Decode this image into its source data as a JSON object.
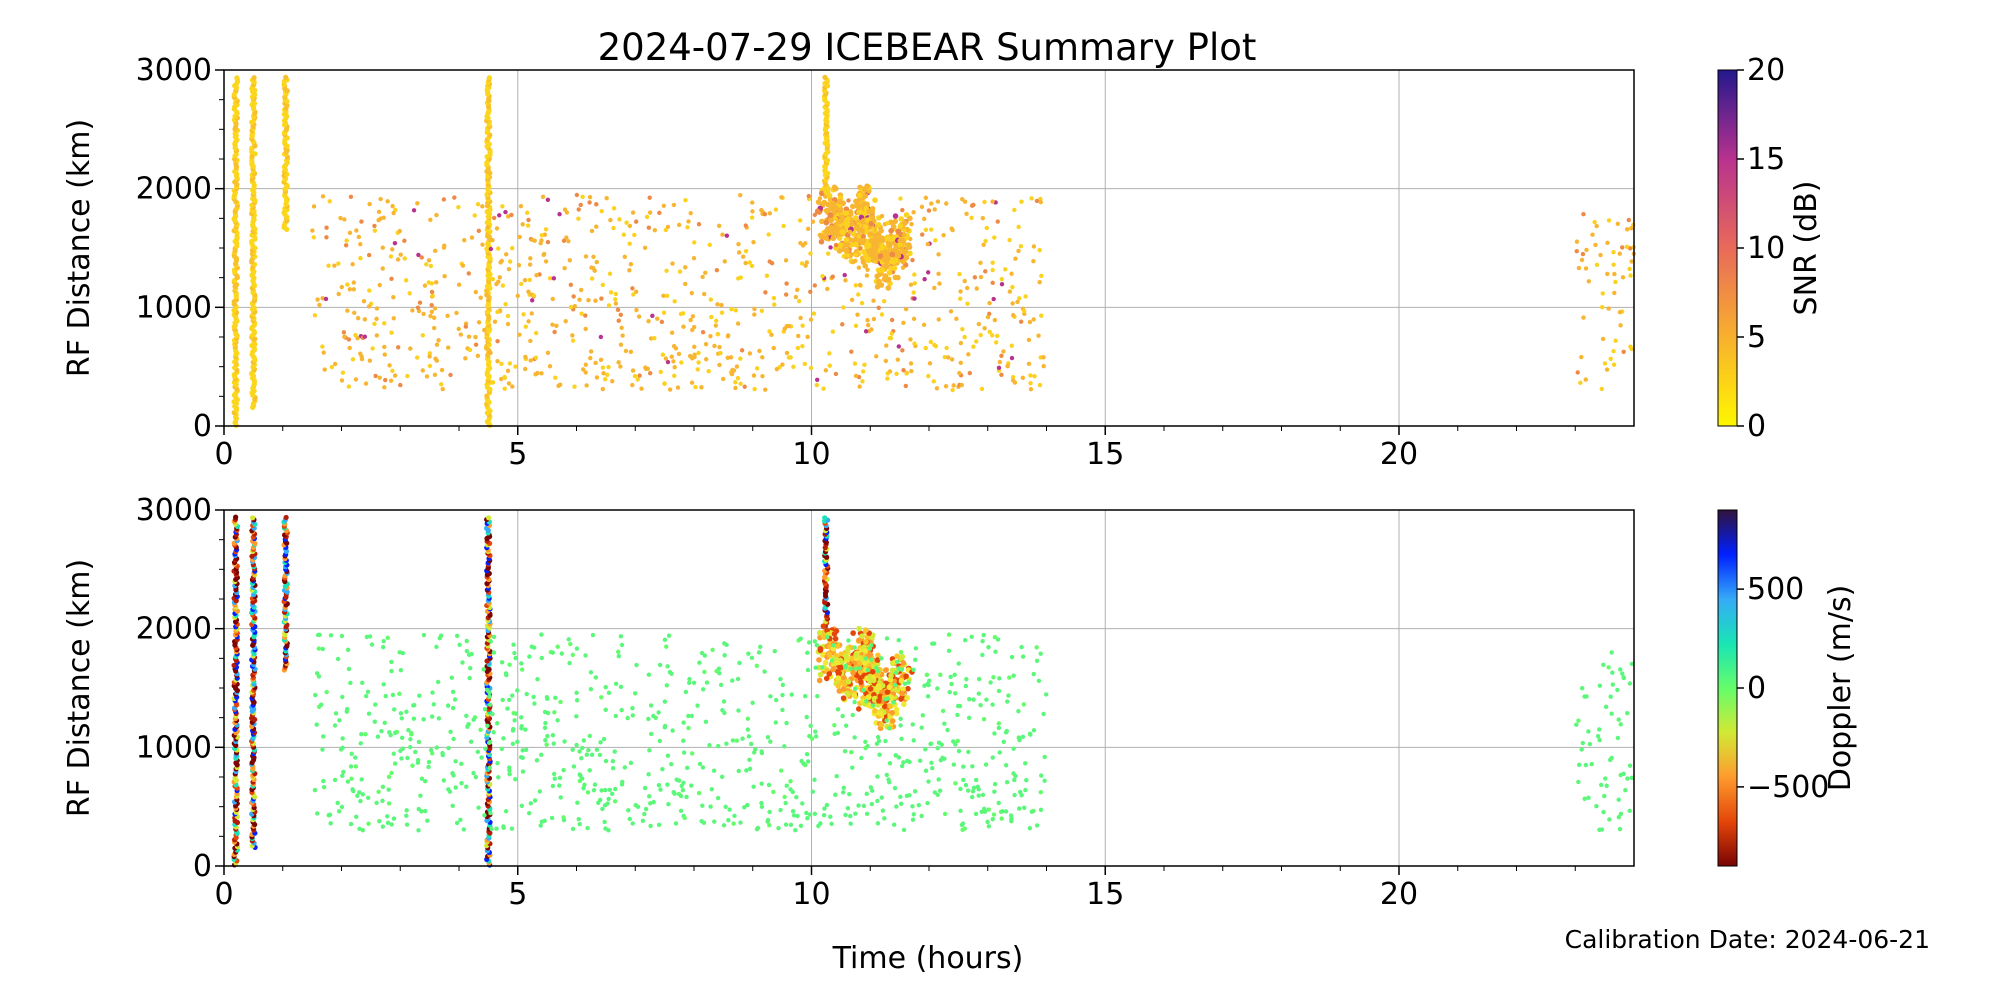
{
  "title": "2024-07-29 ICEBEAR Summary Plot",
  "footer": "Calibration Date: 2024-06-21",
  "chart_data": [
    {
      "type": "scatter",
      "xlabel": "",
      "ylabel": "RF Distance (km)",
      "xlim": [
        0,
        24
      ],
      "ylim": [
        0,
        3000
      ],
      "xticks": [
        "0",
        "5",
        "10",
        "15",
        "20"
      ],
      "yticks": [
        "0",
        "1000",
        "2000",
        "3000"
      ],
      "grid": true,
      "color_by": "snr",
      "colorbar": {
        "label": "SNR (dB)",
        "range": [
          0,
          20
        ],
        "ticks": [
          "0",
          "5",
          "10",
          "15",
          "20"
        ],
        "colormap": [
          "#fff700",
          "#f8b02e",
          "#e86a5a",
          "#b8328f",
          "#24188d"
        ]
      },
      "dominant_color": "#f7b733"
    },
    {
      "type": "scatter",
      "xlabel": "Time (hours)",
      "ylabel": "RF Distance (km)",
      "xlim": [
        0,
        24
      ],
      "ylim": [
        0,
        3000
      ],
      "xticks": [
        "0",
        "5",
        "10",
        "15",
        "20"
      ],
      "yticks": [
        "0",
        "1000",
        "2000",
        "3000"
      ],
      "grid": true,
      "color_by": "doppler",
      "colorbar": {
        "label": "Doppler (m/s)",
        "range": [
          -900,
          900
        ],
        "ticks": [
          "−500",
          "0",
          "500"
        ],
        "tick_values": [
          -500,
          0,
          500
        ],
        "colormap": [
          "#7a0403",
          "#e4460a",
          "#fe9b2d",
          "#d2e935",
          "#64fd6a",
          "#1ae4b6",
          "#35abf8",
          "#0020ff",
          "#30123b"
        ]
      },
      "dominant_color": "#5af77a"
    }
  ],
  "features": [
    {
      "kind": "stripe",
      "x": 0.2,
      "y": [
        0,
        2950
      ]
    },
    {
      "kind": "stripe",
      "x": 0.5,
      "y": [
        150,
        2950
      ]
    },
    {
      "kind": "stripe",
      "x": 1.05,
      "y": [
        1650,
        2950
      ]
    },
    {
      "kind": "stripe",
      "x": 4.5,
      "y": [
        0,
        2950
      ]
    },
    {
      "kind": "stripe",
      "x": 10.25,
      "y": [
        1950,
        2950
      ]
    },
    {
      "kind": "streak",
      "x": [
        10.2,
        11.0
      ],
      "y": [
        1350,
        2050
      ]
    },
    {
      "kind": "streak",
      "x": [
        10.9,
        11.6
      ],
      "y": [
        1150,
        1800
      ]
    },
    {
      "kind": "scatter",
      "x": [
        1.5,
        14.0
      ],
      "y": [
        300,
        1950
      ]
    },
    {
      "kind": "scatter",
      "x": [
        23.0,
        24.0
      ],
      "y": [
        300,
        1800
      ]
    }
  ]
}
